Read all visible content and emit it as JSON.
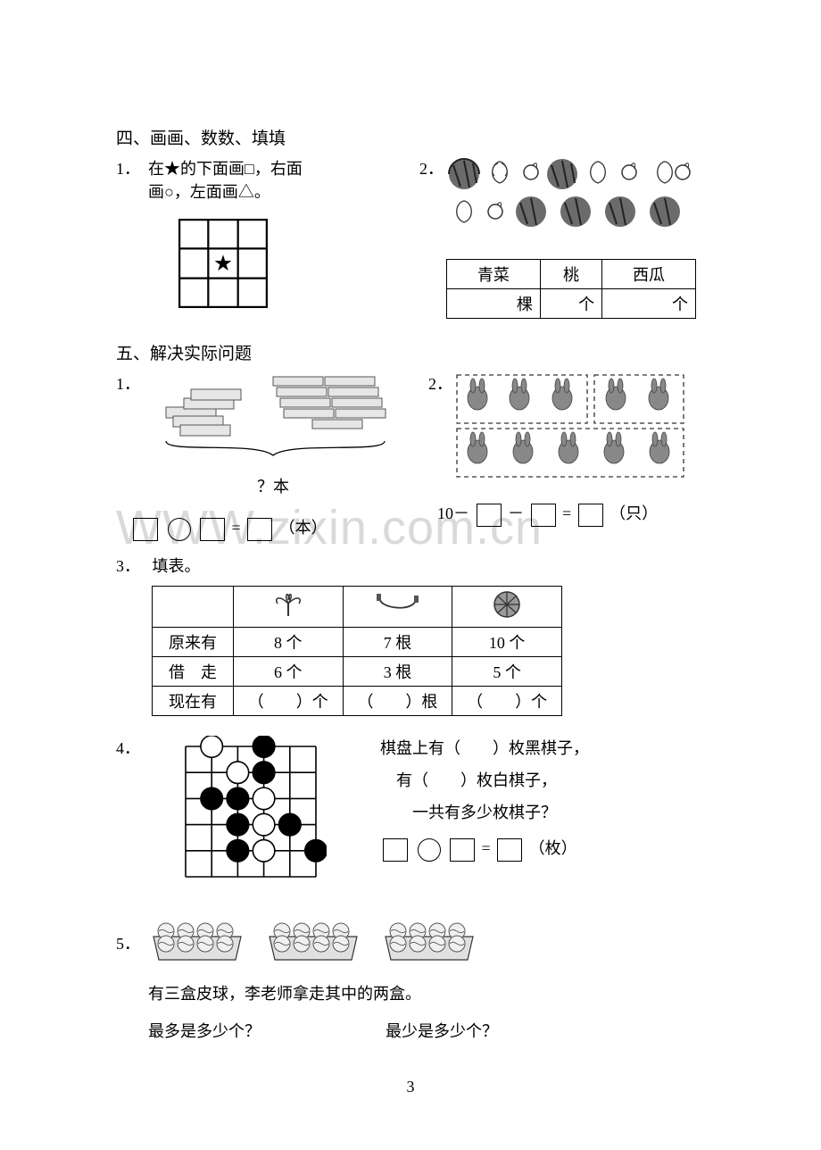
{
  "watermark": "WWW.zixin.com.cn",
  "pagenum": "3",
  "sec4": {
    "heading": "四、画画、数数、填填",
    "q1": {
      "num": "1．",
      "text_line1": "在★的下面画□，右面",
      "text_line2": "画○，左面画△。",
      "star": "★"
    },
    "q2": {
      "num": "2．",
      "table": {
        "cols": [
          "青菜",
          "桃",
          "西瓜"
        ],
        "units": [
          "棵",
          "个",
          "个"
        ]
      },
      "icons": {
        "watermelon_color": "#5a5a5a",
        "cabbage_color": "#7a7a7a",
        "peach_color": "#9a9a9a"
      }
    }
  },
  "sec5": {
    "heading": "五、解决实际问题",
    "q1": {
      "num": "1．",
      "brace_label": "？本",
      "expr_unit": "（本）"
    },
    "q2": {
      "num": "2．",
      "prefix": "10－",
      "op": " － ",
      "eq": " = ",
      "unit": "（只）"
    },
    "q3": {
      "num": "3．",
      "label": "填表。",
      "rows_hdr": [
        "原来有",
        "借　走",
        "现在有"
      ],
      "cols": [
        {
          "icon": "palm",
          "r1": "8 个",
          "r2": "6 个",
          "r3": "（　　）个"
        },
        {
          "icon": "rope",
          "r1": "7 根",
          "r2": "3 根",
          "r3": "（　　）根"
        },
        {
          "icon": "ball",
          "r1": "10 个",
          "r2": "5 个",
          "r3": "（　　）个"
        }
      ]
    },
    "q4": {
      "num": "4．",
      "line1_a": "棋盘上有（　　）枚黑棋子，",
      "line2_a": "有（　　）枚白棋子，",
      "line3_a": "一共有多少枚棋子？",
      "expr_unit": "（枚）",
      "board": {
        "size": 6,
        "stones": [
          {
            "r": 0,
            "c": 1,
            "color": "white"
          },
          {
            "r": 0,
            "c": 3,
            "color": "black"
          },
          {
            "r": 1,
            "c": 2,
            "color": "white"
          },
          {
            "r": 1,
            "c": 3,
            "color": "black"
          },
          {
            "r": 2,
            "c": 1,
            "color": "black"
          },
          {
            "r": 2,
            "c": 2,
            "color": "black"
          },
          {
            "r": 2,
            "c": 3,
            "color": "white"
          },
          {
            "r": 3,
            "c": 2,
            "color": "black"
          },
          {
            "r": 3,
            "c": 3,
            "color": "white"
          },
          {
            "r": 3,
            "c": 4,
            "color": "black"
          },
          {
            "r": 4,
            "c": 2,
            "color": "black"
          },
          {
            "r": 4,
            "c": 3,
            "color": "white"
          },
          {
            "r": 4,
            "c": 5,
            "color": "black"
          }
        ]
      }
    },
    "q5": {
      "num": "5．",
      "line1": "有三盒皮球，李老师拿走其中的两盒。",
      "qA": "最多是多少个？",
      "qB": "最少是多少个？",
      "box_counts": [
        8,
        8,
        8
      ]
    }
  }
}
